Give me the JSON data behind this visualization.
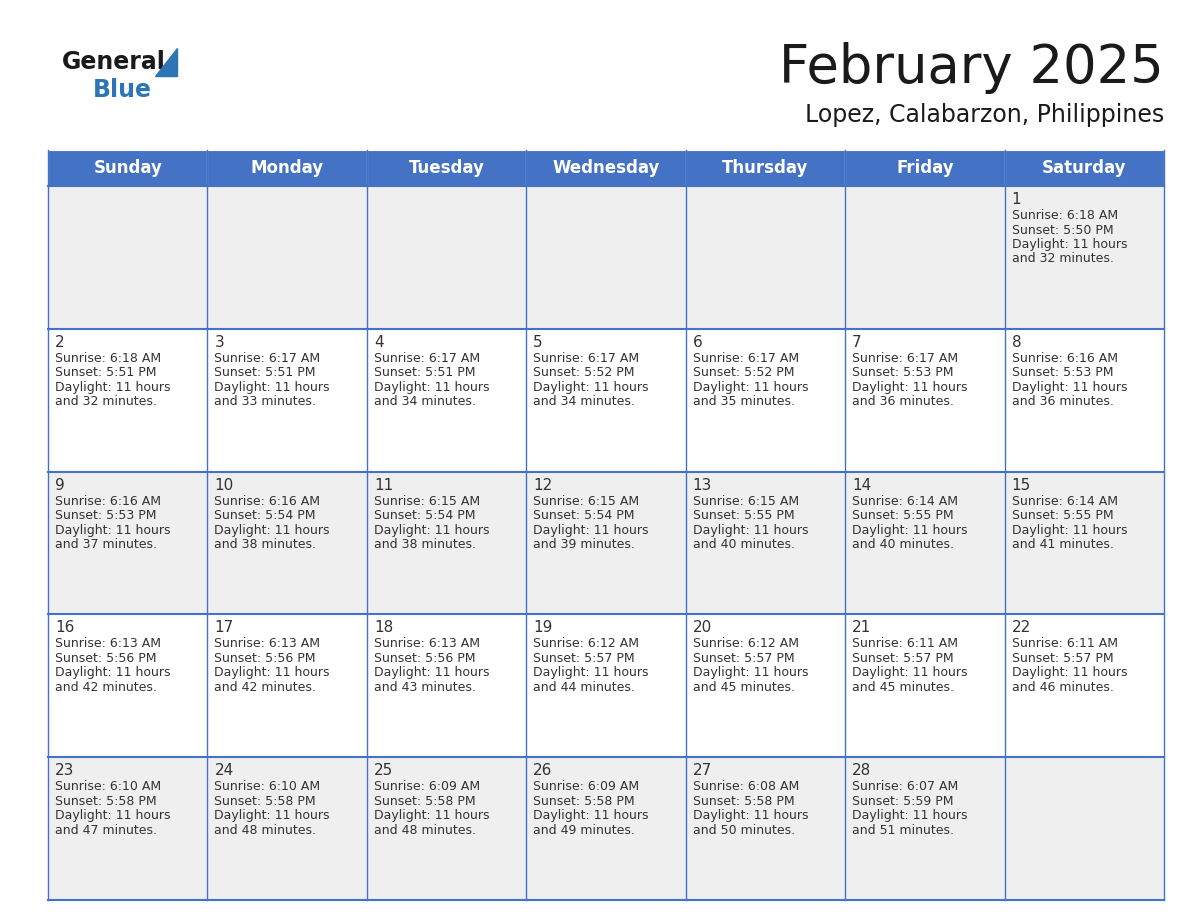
{
  "title": "February 2025",
  "subtitle": "Lopez, Calabarzon, Philippines",
  "header_bg": "#4472C4",
  "header_text_color": "#FFFFFF",
  "row_bg_colors": [
    "#EFEFEF",
    "#FFFFFF",
    "#EFEFEF",
    "#FFFFFF",
    "#EFEFEF"
  ],
  "border_color": "#4472C4",
  "text_color": "#333333",
  "day_headers": [
    "Sunday",
    "Monday",
    "Tuesday",
    "Wednesday",
    "Thursday",
    "Friday",
    "Saturday"
  ],
  "weeks": [
    [
      {
        "day": null,
        "sunrise": null,
        "sunset": null,
        "daylight": null
      },
      {
        "day": null,
        "sunrise": null,
        "sunset": null,
        "daylight": null
      },
      {
        "day": null,
        "sunrise": null,
        "sunset": null,
        "daylight": null
      },
      {
        "day": null,
        "sunrise": null,
        "sunset": null,
        "daylight": null
      },
      {
        "day": null,
        "sunrise": null,
        "sunset": null,
        "daylight": null
      },
      {
        "day": null,
        "sunrise": null,
        "sunset": null,
        "daylight": null
      },
      {
        "day": 1,
        "sunrise": "6:18 AM",
        "sunset": "5:50 PM",
        "daylight": "11 hours\nand 32 minutes."
      }
    ],
    [
      {
        "day": 2,
        "sunrise": "6:18 AM",
        "sunset": "5:51 PM",
        "daylight": "11 hours\nand 32 minutes."
      },
      {
        "day": 3,
        "sunrise": "6:17 AM",
        "sunset": "5:51 PM",
        "daylight": "11 hours\nand 33 minutes."
      },
      {
        "day": 4,
        "sunrise": "6:17 AM",
        "sunset": "5:51 PM",
        "daylight": "11 hours\nand 34 minutes."
      },
      {
        "day": 5,
        "sunrise": "6:17 AM",
        "sunset": "5:52 PM",
        "daylight": "11 hours\nand 34 minutes."
      },
      {
        "day": 6,
        "sunrise": "6:17 AM",
        "sunset": "5:52 PM",
        "daylight": "11 hours\nand 35 minutes."
      },
      {
        "day": 7,
        "sunrise": "6:17 AM",
        "sunset": "5:53 PM",
        "daylight": "11 hours\nand 36 minutes."
      },
      {
        "day": 8,
        "sunrise": "6:16 AM",
        "sunset": "5:53 PM",
        "daylight": "11 hours\nand 36 minutes."
      }
    ],
    [
      {
        "day": 9,
        "sunrise": "6:16 AM",
        "sunset": "5:53 PM",
        "daylight": "11 hours\nand 37 minutes."
      },
      {
        "day": 10,
        "sunrise": "6:16 AM",
        "sunset": "5:54 PM",
        "daylight": "11 hours\nand 38 minutes."
      },
      {
        "day": 11,
        "sunrise": "6:15 AM",
        "sunset": "5:54 PM",
        "daylight": "11 hours\nand 38 minutes."
      },
      {
        "day": 12,
        "sunrise": "6:15 AM",
        "sunset": "5:54 PM",
        "daylight": "11 hours\nand 39 minutes."
      },
      {
        "day": 13,
        "sunrise": "6:15 AM",
        "sunset": "5:55 PM",
        "daylight": "11 hours\nand 40 minutes."
      },
      {
        "day": 14,
        "sunrise": "6:14 AM",
        "sunset": "5:55 PM",
        "daylight": "11 hours\nand 40 minutes."
      },
      {
        "day": 15,
        "sunrise": "6:14 AM",
        "sunset": "5:55 PM",
        "daylight": "11 hours\nand 41 minutes."
      }
    ],
    [
      {
        "day": 16,
        "sunrise": "6:13 AM",
        "sunset": "5:56 PM",
        "daylight": "11 hours\nand 42 minutes."
      },
      {
        "day": 17,
        "sunrise": "6:13 AM",
        "sunset": "5:56 PM",
        "daylight": "11 hours\nand 42 minutes."
      },
      {
        "day": 18,
        "sunrise": "6:13 AM",
        "sunset": "5:56 PM",
        "daylight": "11 hours\nand 43 minutes."
      },
      {
        "day": 19,
        "sunrise": "6:12 AM",
        "sunset": "5:57 PM",
        "daylight": "11 hours\nand 44 minutes."
      },
      {
        "day": 20,
        "sunrise": "6:12 AM",
        "sunset": "5:57 PM",
        "daylight": "11 hours\nand 45 minutes."
      },
      {
        "day": 21,
        "sunrise": "6:11 AM",
        "sunset": "5:57 PM",
        "daylight": "11 hours\nand 45 minutes."
      },
      {
        "day": 22,
        "sunrise": "6:11 AM",
        "sunset": "5:57 PM",
        "daylight": "11 hours\nand 46 minutes."
      }
    ],
    [
      {
        "day": 23,
        "sunrise": "6:10 AM",
        "sunset": "5:58 PM",
        "daylight": "11 hours\nand 47 minutes."
      },
      {
        "day": 24,
        "sunrise": "6:10 AM",
        "sunset": "5:58 PM",
        "daylight": "11 hours\nand 48 minutes."
      },
      {
        "day": 25,
        "sunrise": "6:09 AM",
        "sunset": "5:58 PM",
        "daylight": "11 hours\nand 48 minutes."
      },
      {
        "day": 26,
        "sunrise": "6:09 AM",
        "sunset": "5:58 PM",
        "daylight": "11 hours\nand 49 minutes."
      },
      {
        "day": 27,
        "sunrise": "6:08 AM",
        "sunset": "5:58 PM",
        "daylight": "11 hours\nand 50 minutes."
      },
      {
        "day": 28,
        "sunrise": "6:07 AM",
        "sunset": "5:59 PM",
        "daylight": "11 hours\nand 51 minutes."
      },
      {
        "day": null,
        "sunrise": null,
        "sunset": null,
        "daylight": null
      }
    ]
  ],
  "logo_general_color": "#1a1a1a",
  "logo_blue_color": "#2E75B6",
  "title_fontsize": 38,
  "subtitle_fontsize": 17,
  "header_fontsize": 12,
  "day_number_fontsize": 11,
  "cell_text_fontsize": 9
}
